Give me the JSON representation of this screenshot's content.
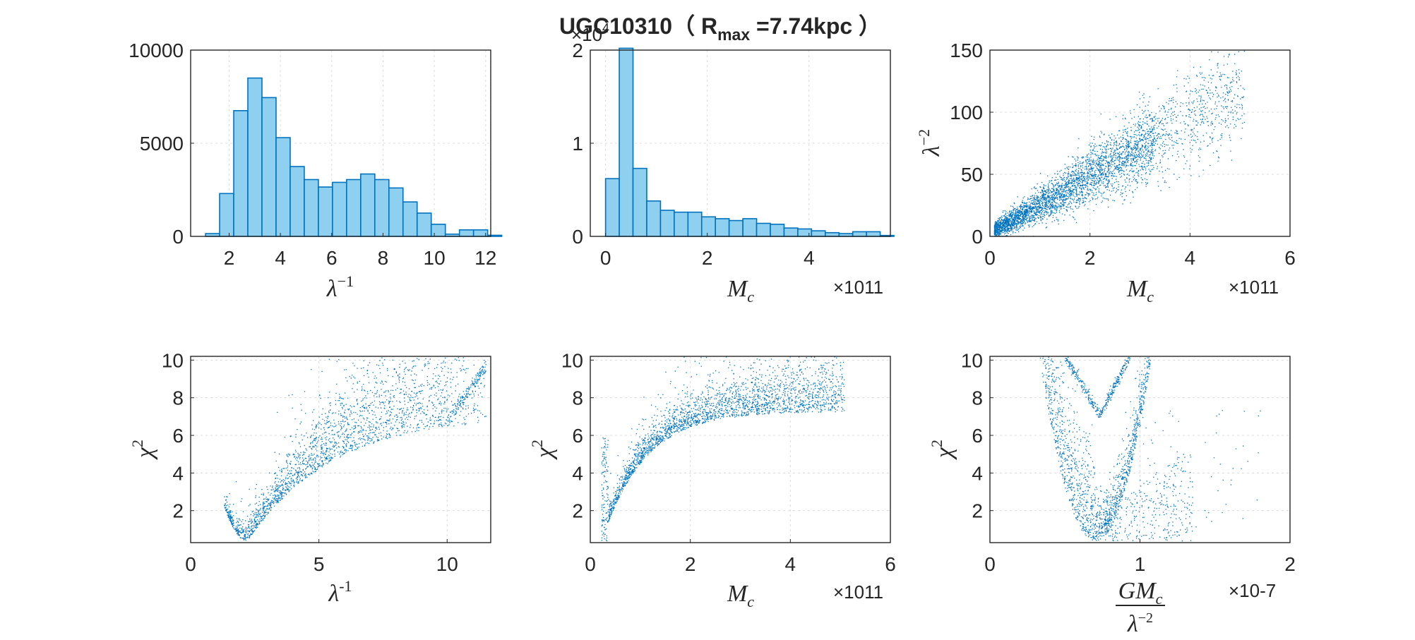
{
  "title": {
    "prefix": "UGC10310（ R",
    "subscript": "max",
    "suffix": " =7.74kpc ）"
  },
  "colors": {
    "scatter": "#0072BD",
    "bar_fill": "#8fd0f0",
    "bar_edge": "#0072BD",
    "axis": "#262626",
    "grid": "#dcdcdc"
  },
  "chart_data": [
    {
      "id": "hist-lambda-inv",
      "type": "bar",
      "grid": true,
      "xlabel": "λ⁻¹",
      "xlim": [
        0.5,
        12.2
      ],
      "ylim": [
        0,
        10000
      ],
      "xticks": [
        2,
        4,
        6,
        8,
        10,
        12
      ],
      "yticks": [
        0,
        5000,
        10000
      ],
      "bin_width": 0.55,
      "bin_start": 1.08,
      "values": [
        150,
        2300,
        6750,
        8500,
        7450,
        5300,
        3750,
        3050,
        2650,
        2900,
        3050,
        3350,
        3050,
        2600,
        1850,
        1250,
        650,
        120,
        350,
        350,
        60
      ]
    },
    {
      "id": "hist-mc",
      "type": "bar",
      "grid": true,
      "xlabel": "M_c",
      "x_multiplier": "×10",
      "x_multiplier_exp": "11",
      "y_multiplier": "×10",
      "y_multiplier_exp": "4",
      "xlim": [
        -0.3,
        5.6
      ],
      "ylim": [
        0,
        2.0
      ],
      "xticks": [
        0,
        2,
        4
      ],
      "yticks": [
        0,
        1,
        2
      ],
      "bin_width": 0.27,
      "bin_start": 0.0,
      "values": [
        0.62,
        2.02,
        0.73,
        0.38,
        0.28,
        0.26,
        0.26,
        0.21,
        0.19,
        0.17,
        0.19,
        0.14,
        0.13,
        0.09,
        0.08,
        0.06,
        0.04,
        0.03,
        0.05,
        0.05,
        0.01
      ]
    },
    {
      "id": "scatter-mc-lambda2",
      "type": "scatter",
      "grid": true,
      "xlabel": "M_c",
      "ylabel": "λ⁻²",
      "x_multiplier": "×10",
      "x_multiplier_exp": "11",
      "xlim": [
        0,
        6
      ],
      "ylim": [
        0,
        150
      ],
      "xticks": [
        0,
        2,
        4,
        6
      ],
      "yticks": [
        0,
        50,
        100,
        150
      ],
      "trend": "linear increase from (0.1, 0) to (5.1, 125)"
    },
    {
      "id": "scatter-lambda-chi2",
      "type": "scatter",
      "grid": true,
      "xlabel": "λ⁻¹",
      "ylabel": "χ²",
      "xlim": [
        0,
        11.7
      ],
      "ylim": [
        0.3,
        10.2
      ],
      "xticks": [
        0,
        5,
        10
      ],
      "yticks": [
        2,
        4,
        6,
        8,
        10
      ],
      "trend": "minimum near λ⁻¹≈2.2 (χ²≈0.4), rising to χ²≈10 at λ⁻¹≈11.5"
    },
    {
      "id": "scatter-mc-chi2",
      "type": "scatter",
      "grid": true,
      "xlabel": "M_c",
      "ylabel": "χ²",
      "x_multiplier": "×10",
      "x_multiplier_exp": "11",
      "xlim": [
        0,
        6
      ],
      "ylim": [
        0.3,
        10.2
      ],
      "xticks": [
        0,
        2,
        4,
        6
      ],
      "yticks": [
        2,
        4,
        6,
        8,
        10
      ],
      "trend": "sharp rise from (0.25, 0.4) saturating near χ²≈7.3 at M_c≈5"
    },
    {
      "id": "scatter-ratio-chi2",
      "type": "scatter",
      "grid": true,
      "xlabel_num": "GM_c",
      "xlabel_den": "λ⁻²",
      "ylabel": "χ²",
      "x_multiplier": "×10",
      "x_multiplier_exp": "-7",
      "xlim": [
        0,
        2
      ],
      "ylim": [
        0.3,
        10.2
      ],
      "xticks": [
        0,
        1,
        2
      ],
      "yticks": [
        2,
        4,
        6,
        8,
        10
      ],
      "trend": "parabolic minimum near 0.7 (χ²≈0.4), upper branch V-shape meeting at 0.73 (χ²≈7)"
    }
  ]
}
